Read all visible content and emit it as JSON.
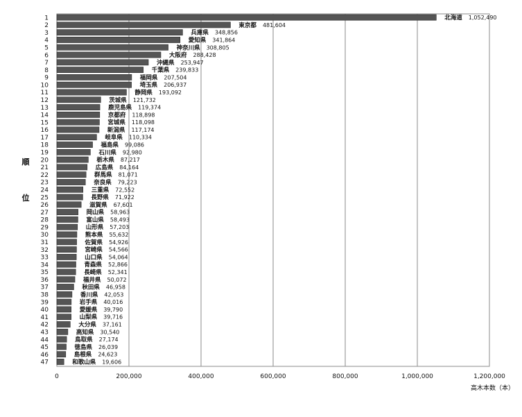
{
  "chart_data": {
    "type": "bar",
    "orientation": "horizontal",
    "ylabel": [
      "順",
      "位"
    ],
    "xlabel": "高木本数（本）",
    "xlim": [
      0,
      1200000
    ],
    "xticks": [
      "0",
      "200,000",
      "400,000",
      "600,000",
      "800,000",
      "1,000,000",
      "1,200,000"
    ],
    "xtick_values": [
      0,
      200000,
      400000,
      600000,
      800000,
      1000000,
      1200000
    ],
    "grid": "vertical",
    "bar_color": "#555555",
    "ranks": [
      1,
      2,
      3,
      4,
      5,
      6,
      7,
      8,
      9,
      10,
      11,
      12,
      13,
      14,
      15,
      16,
      17,
      18,
      19,
      20,
      21,
      22,
      23,
      24,
      25,
      26,
      27,
      28,
      29,
      30,
      31,
      32,
      33,
      34,
      35,
      36,
      37,
      38,
      39,
      40,
      41,
      42,
      43,
      44,
      45,
      46,
      47
    ],
    "categories": [
      "北海道",
      "東京都",
      "兵庫県",
      "愛知県",
      "神奈川県",
      "大阪府",
      "沖縄県",
      "千葉県",
      "福岡県",
      "埼玉県",
      "静岡県",
      "茨城県",
      "鹿児島県",
      "京都府",
      "宮城県",
      "新潟県",
      "岐阜県",
      "福島県",
      "石川県",
      "栃木県",
      "広島県",
      "群馬県",
      "奈良県",
      "三重県",
      "長野県",
      "滋賀県",
      "岡山県",
      "富山県",
      "山形県",
      "熊本県",
      "佐賀県",
      "宮崎県",
      "山口県",
      "青森県",
      "長崎県",
      "福井県",
      "秋田県",
      "香川県",
      "岩手県",
      "愛媛県",
      "山梨県",
      "大分県",
      "高知県",
      "鳥取県",
      "徳島県",
      "島根県",
      "和歌山県"
    ],
    "values": [
      1052490,
      481604,
      348856,
      341864,
      308805,
      288428,
      253947,
      239833,
      207504,
      206937,
      193092,
      121732,
      119374,
      118898,
      118098,
      117174,
      110334,
      99086,
      92980,
      87217,
      84164,
      81071,
      79223,
      72552,
      71922,
      67601,
      58963,
      58493,
      57203,
      55632,
      54926,
      54566,
      54064,
      52866,
      52341,
      50072,
      46958,
      42053,
      40016,
      39790,
      39716,
      37161,
      30540,
      27174,
      26039,
      24623,
      19606
    ],
    "value_labels": [
      "1,052,490",
      "481,604",
      "348,856",
      "341,864",
      "308,805",
      "288,428",
      "253,947",
      "239,833",
      "207,504",
      "206,937",
      "193,092",
      "121,732",
      "119,374",
      "118,898",
      "118,098",
      "117,174",
      "110,334",
      "99,086",
      "92,980",
      "87,217",
      "84,164",
      "81,071",
      "79,223",
      "72,552",
      "71,922",
      "67,601",
      "58,963",
      "58,493",
      "57,203",
      "55,632",
      "54,926",
      "54,566",
      "54,064",
      "52,866",
      "52,341",
      "50,072",
      "46,958",
      "42,053",
      "40,016",
      "39,790",
      "39,716",
      "37,161",
      "30,540",
      "27,174",
      "26,039",
      "24,623",
      "19,606"
    ]
  }
}
